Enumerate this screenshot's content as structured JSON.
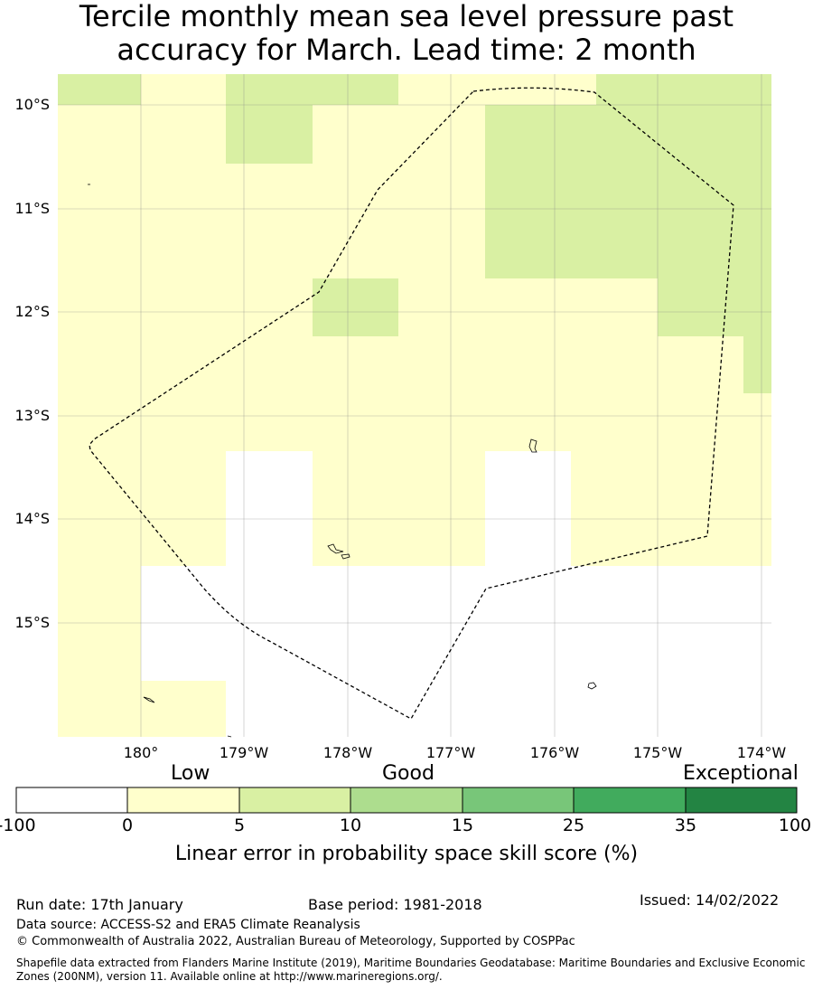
{
  "title": {
    "line1": "Tercile monthly mean sea level pressure past",
    "line2": "accuracy for March. Lead time: 2 month"
  },
  "map": {
    "lat_labels": [
      "10°S",
      "11°S",
      "12°S",
      "13°S",
      "14°S",
      "15°S"
    ],
    "lon_labels": [
      "180°",
      "179°W",
      "178°W",
      "177°W",
      "176°W",
      "175°W",
      "174°W"
    ],
    "colors": {
      "white": "#ffffff",
      "light_yellow": "#ffffcc",
      "light_green": "#d9f0a3"
    }
  },
  "colorbar": {
    "categories": [
      "Low",
      "Good",
      "Exceptional"
    ],
    "ticks": [
      "-100",
      "0",
      "5",
      "10",
      "15",
      "25",
      "35",
      "100"
    ],
    "colors": [
      "#ffffff",
      "#ffffcc",
      "#d9f0a3",
      "#addd8e",
      "#78c679",
      "#41ab5d",
      "#238443"
    ],
    "label": "Linear error in probability space skill score (%)"
  },
  "footer": {
    "run_date": "Run date: 17th January",
    "base_period": "Base period: 1981-2018",
    "issued": "Issued: 14/02/2022",
    "data_source": "Data source: ACCESS-S2 and ERA5 Climate Reanalysis",
    "copyright": "© Commonwealth of Australia 2022, Australian Bureau of Meteorology, Supported by COSPPac",
    "shapefile_line1": "Shapefile data extracted from Flanders Marine Institute (2019), Maritime Boundaries Geodatabase: Maritime Boundaries and Exclusive Economic",
    "shapefile_line2": "Zones (200NM), version 11. Available online at http://www.marineregions.org/."
  }
}
